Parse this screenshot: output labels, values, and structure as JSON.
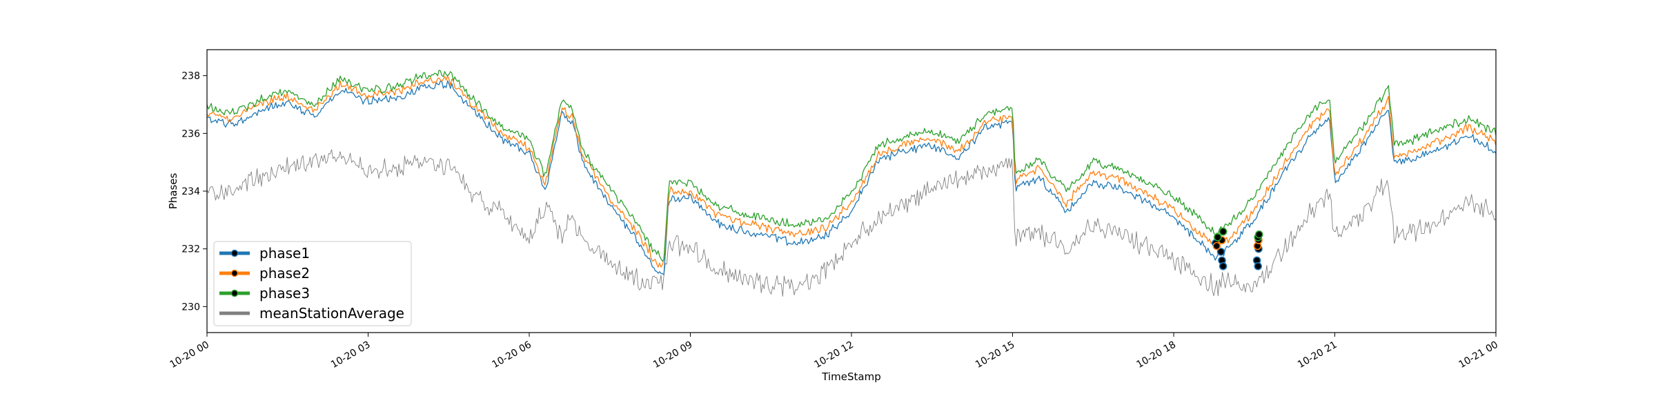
{
  "chart_data": {
    "type": "line",
    "title": "",
    "xlabel": "TimeStamp",
    "ylabel": "Phases",
    "xlim": [
      0,
      24
    ],
    "ylim": [
      229.1,
      238.9
    ],
    "grid": false,
    "legend_position": "lower-left",
    "x_ticks": [
      {
        "value": 0,
        "label": "10-20 00"
      },
      {
        "value": 3,
        "label": "10-20 03"
      },
      {
        "value": 6,
        "label": "10-20 06"
      },
      {
        "value": 9,
        "label": "10-20 09"
      },
      {
        "value": 12,
        "label": "10-20 12"
      },
      {
        "value": 15,
        "label": "10-20 15"
      },
      {
        "value": 18,
        "label": "10-20 18"
      },
      {
        "value": 21,
        "label": "10-20 21"
      },
      {
        "value": 24,
        "label": "10-21 00"
      }
    ],
    "y_ticks": [
      {
        "value": 230,
        "label": "230"
      },
      {
        "value": 232,
        "label": "232"
      },
      {
        "value": 234,
        "label": "234"
      },
      {
        "value": 236,
        "label": "236"
      },
      {
        "value": 238,
        "label": "238"
      }
    ],
    "x": [
      0,
      0.5,
      1,
      1.5,
      2,
      2.5,
      3,
      3.5,
      4,
      4.5,
      5,
      5.5,
      6,
      6.3,
      6.6,
      6.8,
      7,
      7.5,
      8,
      8.3,
      8.5,
      8.6,
      9,
      9.5,
      10,
      10.5,
      11,
      11.5,
      12,
      12.5,
      13,
      13.5,
      14,
      14.5,
      15,
      15.05,
      15.5,
      16,
      16.5,
      17,
      17.5,
      18,
      18.5,
      18.8,
      19,
      19.5,
      20,
      20.5,
      20.9,
      21,
      21.5,
      22,
      22.1,
      22.5,
      23,
      23.5,
      24
    ],
    "series": [
      {
        "name": "phase1",
        "color": "#1f77b4",
        "values": [
          236.5,
          236.3,
          236.8,
          237.1,
          236.6,
          237.5,
          237.1,
          237.2,
          237.6,
          237.7,
          236.7,
          235.8,
          235.3,
          234.0,
          236.7,
          236.4,
          235.0,
          233.5,
          232.3,
          231.4,
          231.0,
          233.7,
          233.8,
          232.9,
          232.6,
          232.4,
          232.2,
          232.4,
          233.3,
          235.1,
          235.4,
          235.6,
          235.2,
          236.2,
          236.4,
          234.1,
          234.5,
          233.3,
          234.3,
          234.1,
          233.6,
          233.1,
          232.2,
          231.7,
          232.0,
          233.0,
          234.5,
          235.8,
          236.6,
          234.3,
          235.5,
          236.9,
          235.0,
          235.1,
          235.5,
          235.9,
          235.4
        ]
      },
      {
        "name": "phase2",
        "color": "#ff7f0e",
        "values": [
          236.7,
          236.5,
          237.0,
          237.3,
          236.8,
          237.7,
          237.3,
          237.4,
          237.8,
          237.9,
          236.9,
          236.0,
          235.5,
          234.2,
          236.9,
          236.6,
          235.2,
          233.8,
          232.6,
          231.7,
          231.3,
          234.0,
          234.0,
          233.2,
          232.9,
          232.7,
          232.5,
          232.7,
          233.6,
          235.3,
          235.6,
          235.8,
          235.4,
          236.4,
          236.6,
          234.3,
          234.8,
          233.6,
          234.6,
          234.4,
          233.9,
          233.4,
          232.5,
          232.1,
          232.3,
          233.3,
          234.8,
          236.1,
          236.9,
          234.5,
          235.8,
          237.2,
          235.2,
          235.4,
          235.8,
          236.2,
          235.7
        ]
      },
      {
        "name": "phase3",
        "color": "#2ca02c",
        "values": [
          236.9,
          236.7,
          237.2,
          237.5,
          237.0,
          237.9,
          237.5,
          237.6,
          238.0,
          238.1,
          237.1,
          236.2,
          235.8,
          234.5,
          237.1,
          236.8,
          235.4,
          234.1,
          232.9,
          232.0,
          231.6,
          234.3,
          234.3,
          233.5,
          233.2,
          233.0,
          232.8,
          233.0,
          233.9,
          235.6,
          235.9,
          236.1,
          235.7,
          236.7,
          236.9,
          234.6,
          235.1,
          234.0,
          235.0,
          234.8,
          234.3,
          233.8,
          233.0,
          232.5,
          232.8,
          233.8,
          235.3,
          236.6,
          237.3,
          235.0,
          236.2,
          237.6,
          235.6,
          235.8,
          236.2,
          236.5,
          236.0
        ]
      },
      {
        "name": "meanStationAverage",
        "color": "#808080",
        "values": [
          234.0,
          234.0,
          234.5,
          234.8,
          235.0,
          235.2,
          234.7,
          234.8,
          235.0,
          234.9,
          233.8,
          233.2,
          232.3,
          233.5,
          232.5,
          233.0,
          232.2,
          231.5,
          230.9,
          230.8,
          230.9,
          232.2,
          232.1,
          231.3,
          231.0,
          230.8,
          230.7,
          231.2,
          232.2,
          233.1,
          233.6,
          234.1,
          234.4,
          234.7,
          234.9,
          232.4,
          232.5,
          232.0,
          232.8,
          232.6,
          232.1,
          231.6,
          231.0,
          230.6,
          230.9,
          230.7,
          231.8,
          233.1,
          234.0,
          232.4,
          233.2,
          234.4,
          232.5,
          232.6,
          233.0,
          233.6,
          233.2
        ]
      }
    ],
    "markers": [
      {
        "series": "phase1",
        "points": [
          [
            18.78,
            232.2
          ],
          [
            18.88,
            231.9
          ],
          [
            18.9,
            231.6
          ],
          [
            18.92,
            231.4
          ],
          [
            19.55,
            231.6
          ],
          [
            19.57,
            231.4
          ],
          [
            19.58,
            232.0
          ]
        ]
      },
      {
        "series": "phase2",
        "points": [
          [
            18.8,
            232.1
          ],
          [
            18.9,
            232.3
          ],
          [
            19.56,
            232.1
          ],
          [
            19.58,
            232.3
          ]
        ]
      },
      {
        "series": "phase3",
        "points": [
          [
            18.82,
            232.4
          ],
          [
            18.92,
            232.6
          ],
          [
            19.57,
            232.4
          ],
          [
            19.59,
            232.5
          ]
        ]
      }
    ]
  }
}
